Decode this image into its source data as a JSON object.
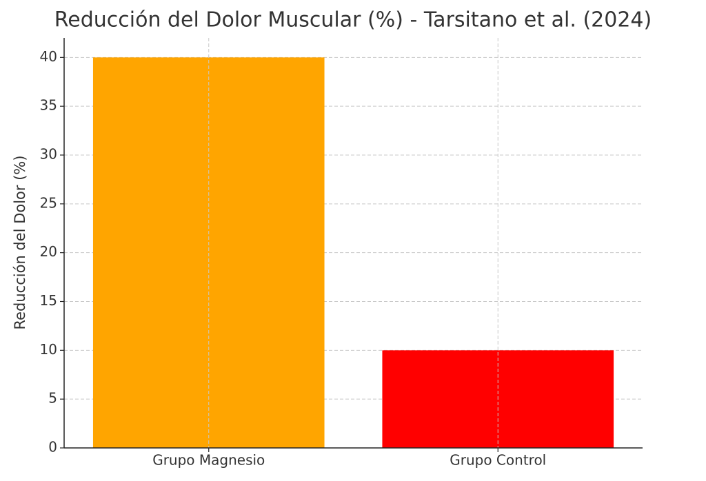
{
  "chart_data": {
    "type": "bar",
    "title": "Reducción del Dolor Muscular (%) - Tarsitano et al. (2024)",
    "y_label": "Reducción del Dolor (%)",
    "categories": [
      "Grupo Magnesio",
      "Grupo Control"
    ],
    "values": [
      40,
      10
    ],
    "colors": [
      "#ffa500",
      "#ff0000"
    ],
    "ylim": [
      0,
      42
    ],
    "yticks": [
      0,
      5,
      10,
      15,
      20,
      25,
      30,
      35,
      40
    ],
    "grid": true
  }
}
